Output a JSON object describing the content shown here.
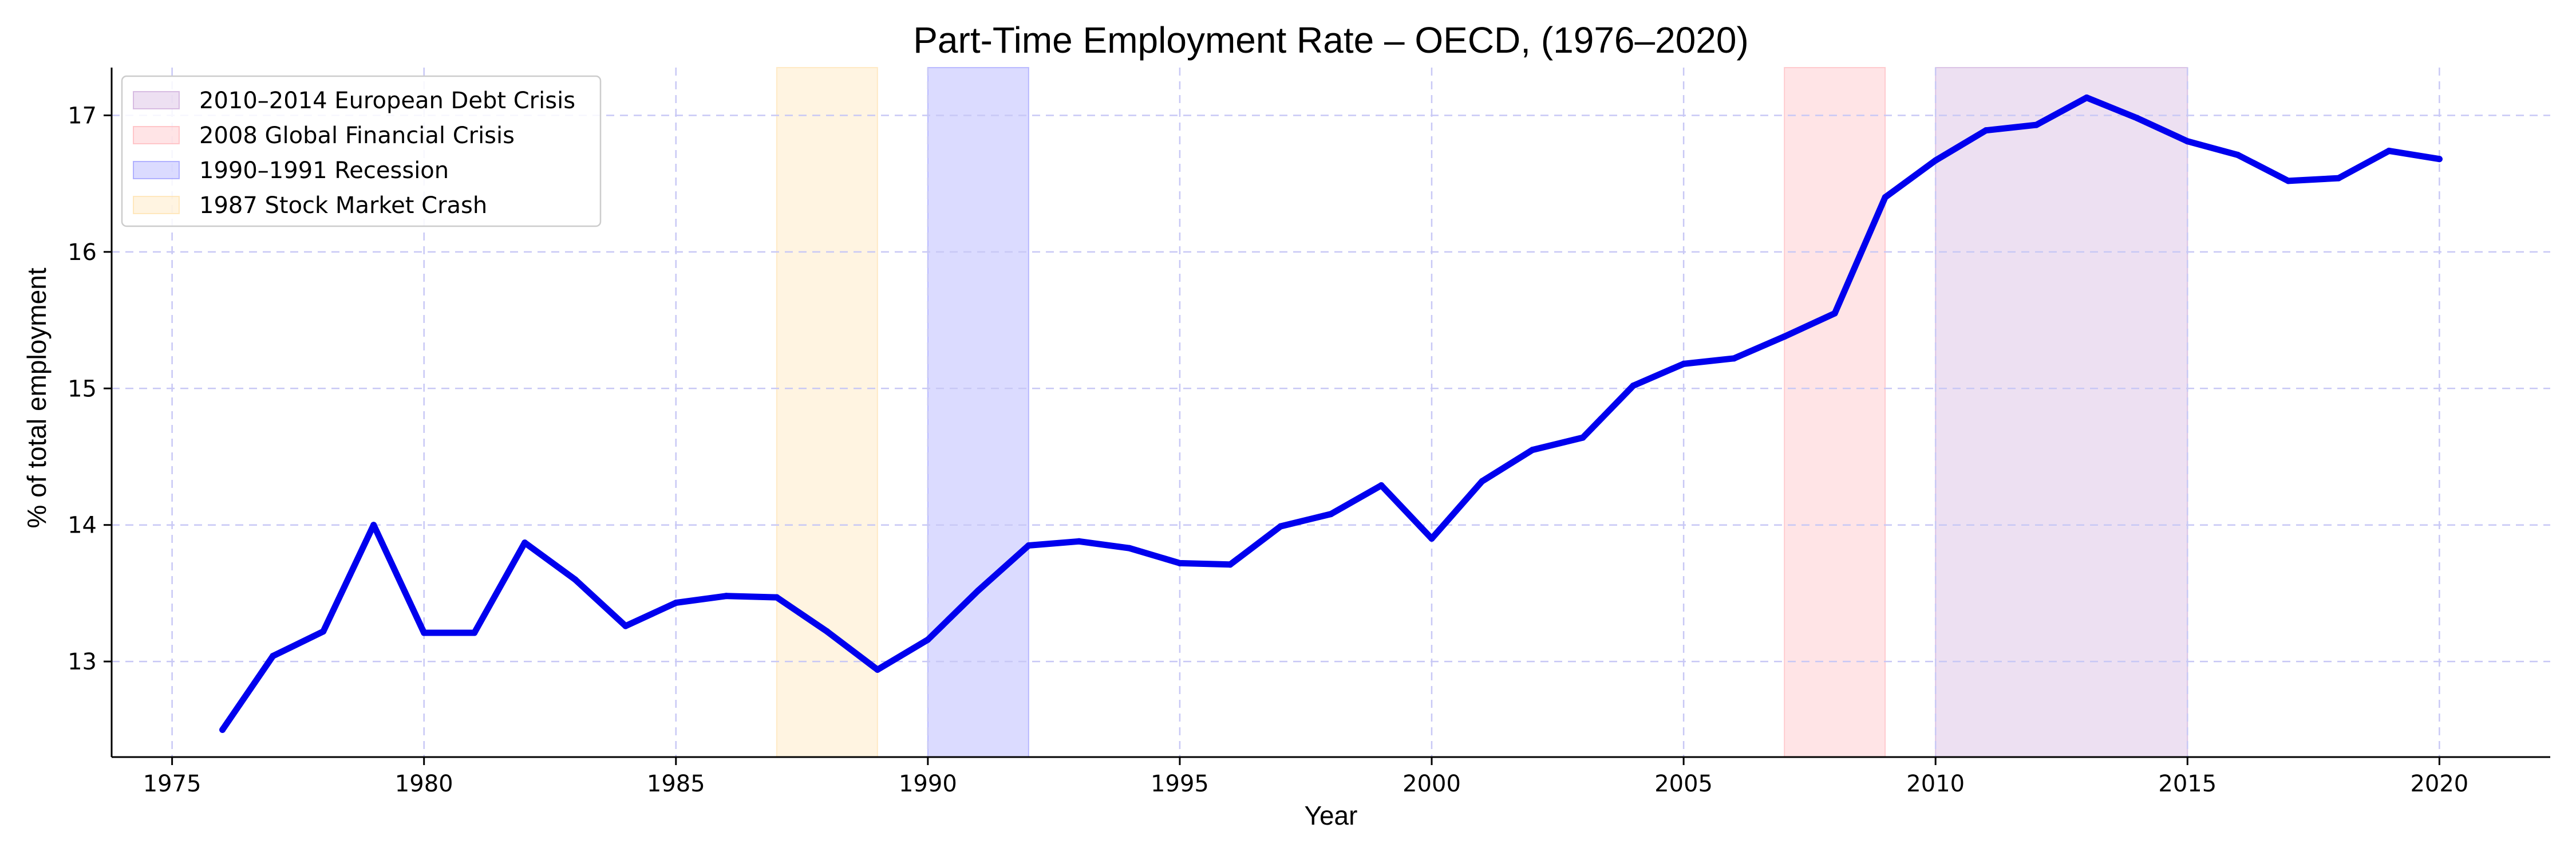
{
  "chart_data": {
    "type": "line",
    "title": "Part-Time Employment Rate – OECD, (1976–2020)",
    "xlabel": "Year",
    "ylabel": "% of total employment",
    "xlim": [
      1973.8,
      2022.2
    ],
    "ylim": [
      12.3,
      17.35
    ],
    "x_ticks": [
      1975,
      1980,
      1985,
      1990,
      1995,
      2000,
      2005,
      2010,
      2015,
      2020
    ],
    "y_ticks": [
      13,
      14,
      15,
      16,
      17
    ],
    "grid": true,
    "legend_position": "top-left",
    "series": [
      {
        "color": "#0000ee",
        "x": [
          1976,
          1977,
          1978,
          1979,
          1980,
          1981,
          1982,
          1983,
          1984,
          1985,
          1986,
          1987,
          1988,
          1989,
          1990,
          1991,
          1992,
          1993,
          1994,
          1995,
          1996,
          1997,
          1998,
          1999,
          2000,
          2001,
          2002,
          2003,
          2004,
          2005,
          2006,
          2007,
          2008,
          2009,
          2010,
          2011,
          2012,
          2013,
          2014,
          2015,
          2016,
          2017,
          2018,
          2019,
          2020
        ],
        "values": [
          12.5,
          13.04,
          13.22,
          14.0,
          13.21,
          13.21,
          13.87,
          13.6,
          13.26,
          13.43,
          13.48,
          13.47,
          13.22,
          12.94,
          13.16,
          13.52,
          13.85,
          13.88,
          13.83,
          13.72,
          13.71,
          13.99,
          14.08,
          14.29,
          13.9,
          14.32,
          14.55,
          14.64,
          15.02,
          15.18,
          15.22,
          15.38,
          15.55,
          16.4,
          16.67,
          16.89,
          16.93,
          17.13,
          16.98,
          16.81,
          16.71,
          16.52,
          16.54,
          16.74,
          16.68
        ]
      }
    ],
    "shaded_regions": [
      {
        "label": "2010–2014 European Debt Crisis",
        "start": 2010,
        "end": 2015,
        "color": "#caa6d9"
      },
      {
        "label": "2008 Global Financial Crisis",
        "start": 2007,
        "end": 2009,
        "color": "#ffb3b8"
      },
      {
        "label": "1990–1991 Recession",
        "start": 1990,
        "end": 1992,
        "color": "#9999ff"
      },
      {
        "label": "1987 Stock Market Crash",
        "start": 1987,
        "end": 1989,
        "color": "#ffe0a8"
      }
    ]
  }
}
